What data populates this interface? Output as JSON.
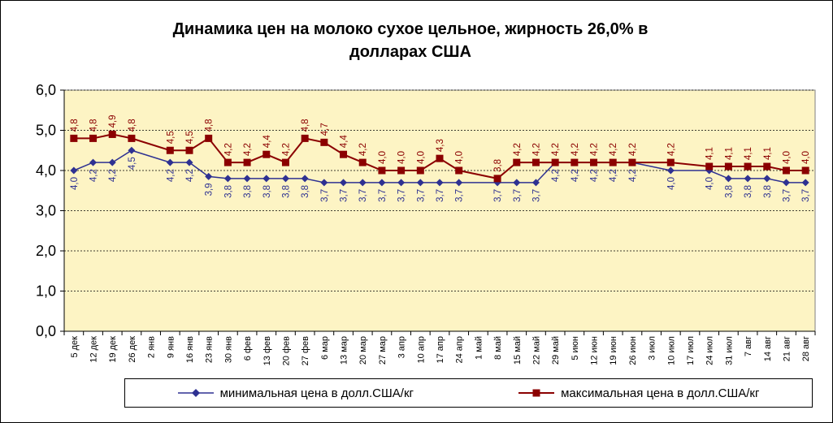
{
  "chart_data": {
    "type": "line",
    "title_line1": "Динамика цен на молоко сухое цельное, жирность 26,0%  в",
    "title_line2": "долларах США",
    "categories": [
      "5 дек",
      "12 дек",
      "19 дек",
      "26 дек",
      "2 янв",
      "9 янв",
      "16 янв",
      "23 янв",
      "30 янв",
      "6 фев",
      "13 фев",
      "20 фев",
      "27 фев",
      "6 мар",
      "13 мар",
      "20 мар",
      "27 мар",
      "3 апр",
      "10 апр",
      "17 апр",
      "24 апр",
      "1 май",
      "8 май",
      "15 май",
      "22 май",
      "29 май",
      "5 июн",
      "12 июн",
      "19 июн",
      "26 июн",
      "3 июл",
      "10 июл",
      "17 июл",
      "24 июл",
      "31 июл",
      "7 авг",
      "14 авг",
      "21 авг",
      "28 авг"
    ],
    "y_ticks": [
      "0,0",
      "1,0",
      "2,0",
      "3,0",
      "4,0",
      "5,0",
      "6,0"
    ],
    "ylim": [
      0,
      6
    ],
    "grid": true,
    "legend_position": "bottom",
    "series": [
      {
        "name": "минимальная цена в долл.США/кг",
        "color": "#2E3192",
        "marker": "diamond",
        "values": [
          4.0,
          4.2,
          4.2,
          4.5,
          null,
          4.2,
          4.2,
          3.85,
          3.8,
          3.8,
          3.8,
          3.8,
          3.8,
          3.7,
          3.7,
          3.7,
          3.7,
          3.7,
          3.7,
          3.7,
          3.7,
          null,
          3.7,
          3.7,
          3.7,
          4.2,
          4.2,
          4.2,
          4.2,
          4.2,
          null,
          4.0,
          null,
          4.0,
          3.8,
          3.8,
          3.8,
          3.7,
          3.7
        ],
        "labels": [
          "4,0",
          "4,2",
          "4,2",
          "4,5",
          "",
          "4,2",
          "4,2",
          "3,9",
          "3,8",
          "3,8",
          "3,8",
          "3,8",
          "3,8",
          "3,7",
          "3,7",
          "3,7",
          "3,7",
          "3,7",
          "3,7",
          "3,7",
          "3,7",
          "",
          "3,7",
          "3,7",
          "3,7",
          "4,2",
          "4,2",
          "4,2",
          "4,2",
          "4,2",
          "",
          "4,0",
          "",
          "4,0",
          "3,8",
          "3,8",
          "3,8",
          "3,7",
          "3,7"
        ]
      },
      {
        "name": "максимальная цена в долл.США/кг",
        "color": "#8B0000",
        "marker": "square",
        "values": [
          4.8,
          4.8,
          4.9,
          4.8,
          null,
          4.5,
          4.5,
          4.8,
          4.2,
          4.2,
          4.4,
          4.2,
          4.8,
          4.7,
          4.4,
          4.2,
          4.0,
          4.0,
          4.0,
          4.3,
          4.0,
          null,
          3.8,
          4.2,
          4.2,
          4.2,
          4.2,
          4.2,
          4.2,
          4.2,
          null,
          4.2,
          null,
          4.1,
          4.1,
          4.1,
          4.1,
          4.0,
          4.0
        ],
        "labels": [
          "4,8",
          "4,8",
          "4,9",
          "4,8",
          "",
          "4,5",
          "4,5",
          "4,8",
          "4,2",
          "4,2",
          "4,4",
          "4,2",
          "4,8",
          "4,7",
          "4,4",
          "4,2",
          "4,0",
          "4,0",
          "4,0",
          "4,3",
          "4,0",
          "",
          "3,8",
          "4,2",
          "4,2",
          "4,2",
          "4,2",
          "4,2",
          "4,2",
          "4,2",
          "",
          "4,2",
          "",
          "4,1",
          "4,1",
          "4,1",
          "4,1",
          "4,0",
          "4,0"
        ]
      }
    ]
  }
}
